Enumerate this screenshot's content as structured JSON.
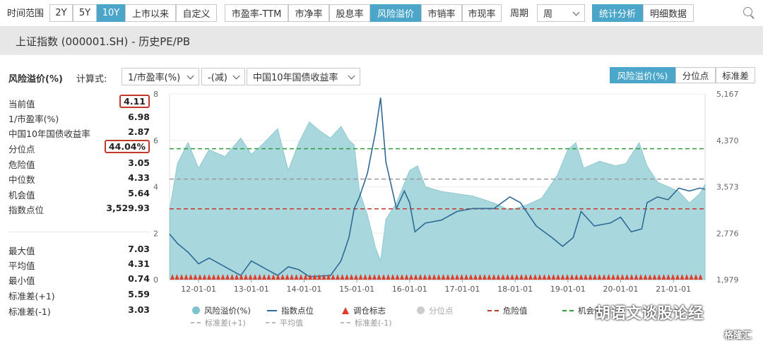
{
  "toolbar": {
    "range_label": "时间范围",
    "ranges": [
      "2Y",
      "5Y",
      "10Y",
      "上市以来",
      "自定义"
    ],
    "active_range": "10Y",
    "metrics": [
      "市盈率-TTM",
      "市净率",
      "股息率",
      "风险溢价",
      "市销率",
      "市现率"
    ],
    "active_metric": "风险溢价",
    "period_label": "周期",
    "period_value": "周",
    "views": [
      "统计分析",
      "明细数据"
    ],
    "active_view": "统计分析"
  },
  "page_title": "上证指数 (000001.SH) - 历史PE/PB",
  "controls": {
    "series_label": "风险溢价(%)",
    "formula_label": "计算式:",
    "formula_1": "1/市盈率(%)",
    "formula_2": "-(减)",
    "formula_3": "中国10年国债收益率",
    "mode_tabs": [
      "风险溢价(%)",
      "分位点",
      "标准差"
    ],
    "active_mode": "风险溢价(%)"
  },
  "stats": {
    "current": {
      "label": "当前值",
      "value": "4.11"
    },
    "inv_pe": {
      "label": "1/市盈率(%)",
      "value": "6.98"
    },
    "bond": {
      "label": "中国10年国债收益率",
      "value": "2.87"
    },
    "percentile": {
      "label": "分位点",
      "value": "44.04%"
    },
    "danger": {
      "label": "危险值",
      "value": "3.05"
    },
    "median": {
      "label": "中位数",
      "value": "4.33"
    },
    "opportunity": {
      "label": "机会值",
      "value": "5.64"
    },
    "index_level": {
      "label": "指数点位",
      "value": "3,529.93"
    },
    "max": {
      "label": "最大值",
      "value": "7.03"
    },
    "mean": {
      "label": "平均值",
      "value": "4.31"
    },
    "min": {
      "label": "最小值",
      "value": "0.74"
    },
    "std_plus": {
      "label": "标准差(+1)",
      "value": "5.59"
    },
    "std_minus": {
      "label": "标准差(-1)",
      "value": "3.03"
    }
  },
  "legend": {
    "risk": "风险溢价(%)",
    "index": "指数点位",
    "rebalance": "调仓标志",
    "percentile": "分位点",
    "danger": "危险值",
    "std_plus": "标准差(+1)",
    "mean": "平均值",
    "std_minus": "标准差(-1)",
    "opportunity_partial": "机会值"
  },
  "watermark": "胡语文谈股论经",
  "watermark2": "格隆汇",
  "colors": {
    "area": "#a8d8dd",
    "index_line": "#2f6a96",
    "danger": "#c0392b",
    "opportunity": "#2e9d3a",
    "median": "#999999",
    "accent": "#4ba6c9"
  },
  "chart_data": {
    "type": "area",
    "x_ticks": [
      "12-01-01",
      "13-01-01",
      "14-01-01",
      "15-01-01",
      "16-01-01",
      "17-01-01",
      "18-01-01",
      "19-01-01",
      "20-01-01",
      "21-01-01"
    ],
    "xlim": [
      2011.45,
      2021.6
    ],
    "y_left": {
      "ticks": [
        0,
        2,
        4,
        6,
        8
      ],
      "ylim": [
        0,
        8
      ]
    },
    "y_right": {
      "ticks": [
        "1,979",
        "2,776",
        "3,573",
        "4,370",
        "5,167"
      ],
      "ylim": [
        1979,
        5167
      ]
    },
    "risk_premium": {
      "name": "风险溢价(%)",
      "points": [
        [
          2011.45,
          3.0
        ],
        [
          2011.6,
          5.0
        ],
        [
          2011.8,
          5.9
        ],
        [
          2012.0,
          4.8
        ],
        [
          2012.2,
          5.6
        ],
        [
          2012.5,
          5.3
        ],
        [
          2012.8,
          6.1
        ],
        [
          2013.0,
          5.4
        ],
        [
          2013.2,
          5.8
        ],
        [
          2013.5,
          6.5
        ],
        [
          2013.7,
          4.7
        ],
        [
          2013.9,
          5.9
        ],
        [
          2014.1,
          6.8
        ],
        [
          2014.3,
          6.4
        ],
        [
          2014.5,
          6.1
        ],
        [
          2014.7,
          6.6
        ],
        [
          2014.85,
          6.0
        ],
        [
          2014.95,
          5.8
        ],
        [
          2015.05,
          3.8
        ],
        [
          2015.2,
          2.8
        ],
        [
          2015.35,
          1.4
        ],
        [
          2015.45,
          0.8
        ],
        [
          2015.55,
          2.6
        ],
        [
          2015.75,
          3.3
        ],
        [
          2016.0,
          4.7
        ],
        [
          2016.15,
          4.9
        ],
        [
          2016.3,
          4.0
        ],
        [
          2016.6,
          3.8
        ],
        [
          2016.9,
          3.7
        ],
        [
          2017.2,
          3.6
        ],
        [
          2017.6,
          3.3
        ],
        [
          2017.9,
          3.0
        ],
        [
          2018.2,
          3.2
        ],
        [
          2018.5,
          3.5
        ],
        [
          2018.8,
          4.5
        ],
        [
          2019.0,
          5.6
        ],
        [
          2019.15,
          5.9
        ],
        [
          2019.3,
          4.8
        ],
        [
          2019.6,
          5.1
        ],
        [
          2019.9,
          4.9
        ],
        [
          2020.1,
          5.0
        ],
        [
          2020.35,
          5.9
        ],
        [
          2020.5,
          4.9
        ],
        [
          2020.7,
          4.2
        ],
        [
          2020.9,
          4.0
        ],
        [
          2021.1,
          3.8
        ],
        [
          2021.3,
          3.3
        ],
        [
          2021.5,
          3.7
        ],
        [
          2021.6,
          4.1
        ]
      ]
    },
    "index": {
      "name": "指数点位",
      "points": [
        [
          2011.45,
          2762
        ],
        [
          2011.6,
          2600
        ],
        [
          2011.8,
          2450
        ],
        [
          2012.0,
          2250
        ],
        [
          2012.2,
          2350
        ],
        [
          2012.5,
          2200
        ],
        [
          2012.8,
          2050
        ],
        [
          2013.0,
          2300
        ],
        [
          2013.2,
          2200
        ],
        [
          2013.5,
          2050
        ],
        [
          2013.7,
          2200
        ],
        [
          2013.9,
          2150
        ],
        [
          2014.1,
          2030
        ],
        [
          2014.3,
          2040
        ],
        [
          2014.5,
          2050
        ],
        [
          2014.7,
          2300
        ],
        [
          2014.85,
          2700
        ],
        [
          2014.95,
          3200
        ],
        [
          2015.05,
          3400
        ],
        [
          2015.2,
          3800
        ],
        [
          2015.35,
          4500
        ],
        [
          2015.45,
          5100
        ],
        [
          2015.55,
          4000
        ],
        [
          2015.65,
          3600
        ],
        [
          2015.75,
          3200
        ],
        [
          2015.9,
          3500
        ],
        [
          2016.0,
          3300
        ],
        [
          2016.1,
          2800
        ],
        [
          2016.3,
          2950
        ],
        [
          2016.6,
          3000
        ],
        [
          2016.9,
          3150
        ],
        [
          2017.2,
          3200
        ],
        [
          2017.6,
          3200
        ],
        [
          2017.9,
          3400
        ],
        [
          2018.1,
          3300
        ],
        [
          2018.4,
          2900
        ],
        [
          2018.7,
          2700
        ],
        [
          2018.9,
          2550
        ],
        [
          2019.1,
          2700
        ],
        [
          2019.25,
          3150
        ],
        [
          2019.5,
          2900
        ],
        [
          2019.8,
          2950
        ],
        [
          2020.0,
          3050
        ],
        [
          2020.2,
          2800
        ],
        [
          2020.4,
          2850
        ],
        [
          2020.5,
          3300
        ],
        [
          2020.7,
          3400
        ],
        [
          2020.9,
          3350
        ],
        [
          2021.1,
          3550
        ],
        [
          2021.3,
          3500
        ],
        [
          2021.5,
          3550
        ],
        [
          2021.6,
          3530
        ]
      ]
    },
    "reference_lines": {
      "opportunity": 5.64,
      "median": 4.33,
      "danger": 3.05
    },
    "grid": true,
    "legend_position": "bottom"
  }
}
